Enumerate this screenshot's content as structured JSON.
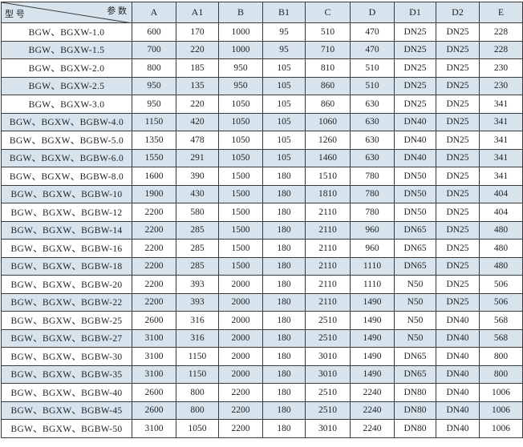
{
  "header": {
    "corner_top_right": "参 数",
    "corner_bottom_left": "型 号",
    "columns": [
      "A",
      "A1",
      "B",
      "B1",
      "C",
      "D",
      "D1",
      "D2",
      "E"
    ]
  },
  "rows": [
    [
      "BGW、BGXW-1.0",
      "600",
      "170",
      "1000",
      "95",
      "510",
      "470",
      "DN25",
      "DN25",
      "228"
    ],
    [
      "BGW、BGXW-1.5",
      "700",
      "220",
      "1000",
      "95",
      "710",
      "470",
      "DN25",
      "DN25",
      "228"
    ],
    [
      "BGW、BGXW-2.0",
      "800",
      "185",
      "950",
      "105",
      "810",
      "510",
      "DN25",
      "DN25",
      "230"
    ],
    [
      "BGW、BGXW-2.5",
      "950",
      "135",
      "950",
      "105",
      "860",
      "510",
      "DN25",
      "DN25",
      "230"
    ],
    [
      "BGW、BGXW-3.0",
      "950",
      "220",
      "1050",
      "105",
      "860",
      "630",
      "DN25",
      "DN25",
      "341"
    ],
    [
      "BGW、BGXW、BGBW-4.0",
      "1150",
      "420",
      "1050",
      "105",
      "1060",
      "630",
      "DN40",
      "DN25",
      "341"
    ],
    [
      "BGW、BGXW、BGBW-5.0",
      "1350",
      "478",
      "1050",
      "105",
      "1260",
      "630",
      "DN40",
      "DN25",
      "341"
    ],
    [
      "BGW、BGXW、BGBW-6.0",
      "1550",
      "291",
      "1050",
      "105",
      "1460",
      "630",
      "DN40",
      "DN25",
      "341"
    ],
    [
      "BGW、BGXW、BGBW-8.0",
      "1600",
      "390",
      "1500",
      "180",
      "1510",
      "780",
      "DN50",
      "DN25",
      "341"
    ],
    [
      "BGW、BGXW、BGBW-10",
      "1900",
      "430",
      "1500",
      "180",
      "1810",
      "780",
      "DN50",
      "DN25",
      "404"
    ],
    [
      "BGW、BGXW、BGBW-12",
      "2200",
      "580",
      "1500",
      "180",
      "2110",
      "780",
      "DN50",
      "DN25",
      "404"
    ],
    [
      "BGW、BGXW、BGBW-14",
      "2200",
      "285",
      "1500",
      "180",
      "2110",
      "960",
      "DN65",
      "DN25",
      "480"
    ],
    [
      "BGW、BGXW、BGBW-16",
      "2200",
      "285",
      "1500",
      "180",
      "2110",
      "960",
      "DN65",
      "DN25",
      "480"
    ],
    [
      "BGW、BGXW、BGBW-18",
      "2200",
      "285",
      "1500",
      "180",
      "2110",
      "1110",
      "DN65",
      "DN25",
      "480"
    ],
    [
      "BGW、BGXW、BGBW-20",
      "2200",
      "393",
      "2000",
      "180",
      "2110",
      "1110",
      "N50",
      "DN25",
      "506"
    ],
    [
      "BGW、BGXW、BGBW-22",
      "2200",
      "393",
      "2000",
      "180",
      "2110",
      "1490",
      "N50",
      "DN25",
      "506"
    ],
    [
      "BGW、BGXW、BGBW-25",
      "2600",
      "316",
      "2000",
      "180",
      "2510",
      "1490",
      "N50",
      "DN40",
      "568"
    ],
    [
      "BGW、BGXW、BGBW-27",
      "3100",
      "316",
      "2000",
      "180",
      "2510",
      "1490",
      "N50",
      "DN40",
      "568"
    ],
    [
      "BGW、BGXW、BGBW-30",
      "3100",
      "1150",
      "2000",
      "180",
      "3010",
      "1490",
      "DN65",
      "DN40",
      "800"
    ],
    [
      "BGW、BGXW、BGBW-35",
      "3100",
      "1150",
      "2000",
      "180",
      "3010",
      "1490",
      "DN65",
      "DN40",
      "800"
    ],
    [
      "BGW、BGXW、BGBW-40",
      "2600",
      "800",
      "2200",
      "180",
      "2510",
      "2240",
      "DN80",
      "DN40",
      "1006"
    ],
    [
      "BGW、BGXW、BGBW-45",
      "2600",
      "800",
      "2200",
      "180",
      "2510",
      "2240",
      "DN80",
      "DN40",
      "1006"
    ],
    [
      "BGW、BGXW、BGBW-50",
      "3100",
      "1050",
      "2200",
      "180",
      "3010",
      "2240",
      "DN80",
      "DN40",
      "1006"
    ]
  ],
  "colors": {
    "shade": "#d7e4ee",
    "border": "#3a3a3a"
  }
}
